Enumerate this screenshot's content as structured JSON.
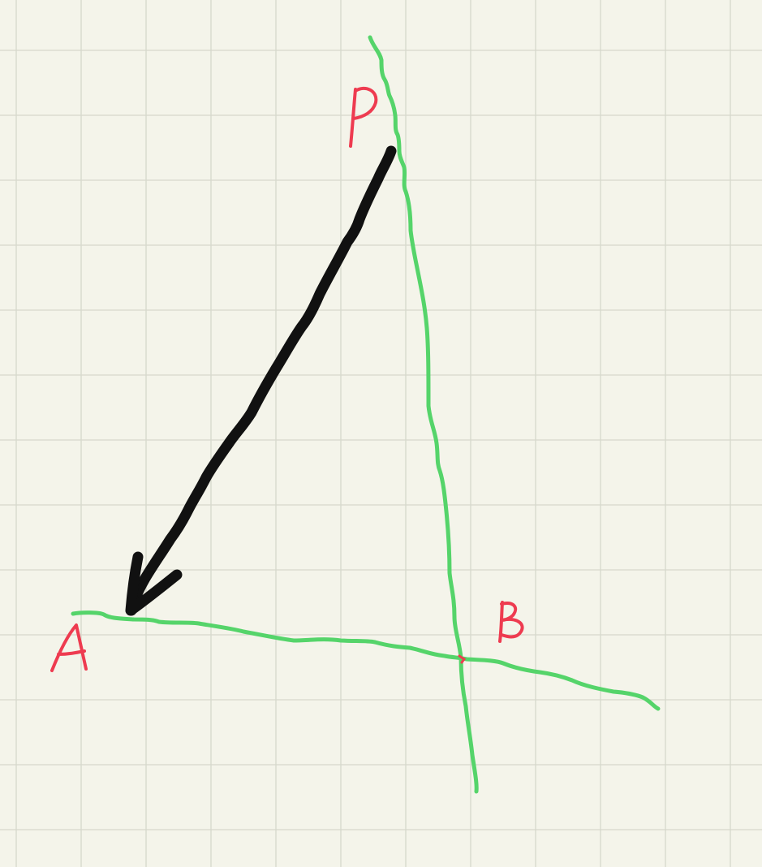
{
  "points": {
    "p": {
      "label": "P"
    },
    "a": {
      "label": "A"
    },
    "b": {
      "label": "B"
    }
  },
  "colors": {
    "background": "#f4f4ea",
    "grid": "#d6d8cc",
    "line_stroke": "#55d46a",
    "vector_arrow": "#111111",
    "label_ink": "#ee3b50"
  }
}
